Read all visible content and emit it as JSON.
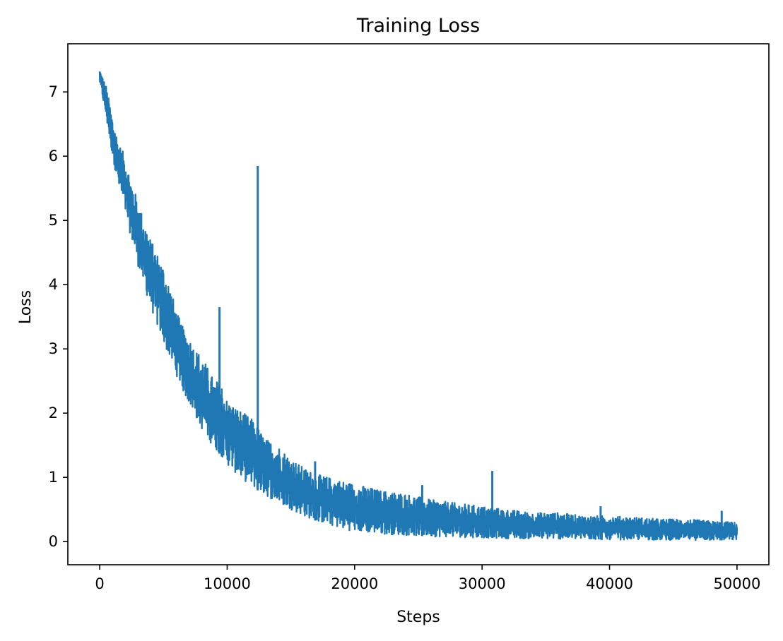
{
  "chart_data": {
    "type": "line",
    "title": "Training Loss",
    "xlabel": "Steps",
    "ylabel": "Loss",
    "xlim": [
      -2500,
      52500
    ],
    "ylim": [
      -0.36,
      7.75
    ],
    "xticks": [
      0,
      10000,
      20000,
      30000,
      40000,
      50000
    ],
    "yticks": [
      0,
      1,
      2,
      3,
      4,
      5,
      6,
      7
    ],
    "grid": false,
    "legend": "none",
    "series_color": "#1f77b4",
    "series": [
      {
        "x": [
          0,
          500,
          1000,
          1500,
          2000,
          2500,
          3000,
          3500,
          4000,
          4500,
          5000,
          5500,
          6000,
          6500,
          7000,
          7500,
          8000,
          8500,
          9000,
          9500,
          10000,
          11000,
          12000,
          13000,
          14000,
          15000,
          16000,
          17000,
          18000,
          19000,
          20000,
          22000,
          24000,
          26000,
          28000,
          30000,
          32000,
          34000,
          36000,
          38000,
          40000,
          42000,
          44000,
          46000,
          48000,
          50000
        ],
        "upper": [
          7.35,
          7.1,
          6.6,
          6.2,
          6.0,
          5.6,
          5.3,
          5.0,
          4.7,
          4.5,
          4.3,
          4.0,
          3.6,
          3.35,
          3.2,
          3.0,
          2.9,
          2.7,
          2.5,
          2.5,
          2.2,
          2.05,
          1.9,
          1.6,
          1.5,
          1.3,
          1.15,
          1.05,
          1.0,
          0.95,
          0.9,
          0.8,
          0.75,
          0.65,
          0.6,
          0.55,
          0.5,
          0.45,
          0.45,
          0.4,
          0.4,
          0.38,
          0.35,
          0.35,
          0.32,
          0.3
        ],
        "lower": [
          7.15,
          6.6,
          6.0,
          5.5,
          5.1,
          4.7,
          4.3,
          3.95,
          3.65,
          3.35,
          3.1,
          2.85,
          2.6,
          2.35,
          2.15,
          1.95,
          1.75,
          1.6,
          1.45,
          1.35,
          1.2,
          1.0,
          0.85,
          0.72,
          0.6,
          0.5,
          0.4,
          0.32,
          0.26,
          0.2,
          0.16,
          0.12,
          0.1,
          0.08,
          0.07,
          0.06,
          0.05,
          0.045,
          0.04,
          0.035,
          0.03,
          0.03,
          0.025,
          0.025,
          0.02,
          0.02
        ],
        "spikes": [
          {
            "x": 9400,
            "y": 3.65
          },
          {
            "x": 12400,
            "y": 5.85
          },
          {
            "x": 30800,
            "y": 1.1
          },
          {
            "x": 25300,
            "y": 0.88
          },
          {
            "x": 16900,
            "y": 1.25
          },
          {
            "x": 39300,
            "y": 0.55
          },
          {
            "x": 48800,
            "y": 0.48
          }
        ]
      }
    ]
  }
}
